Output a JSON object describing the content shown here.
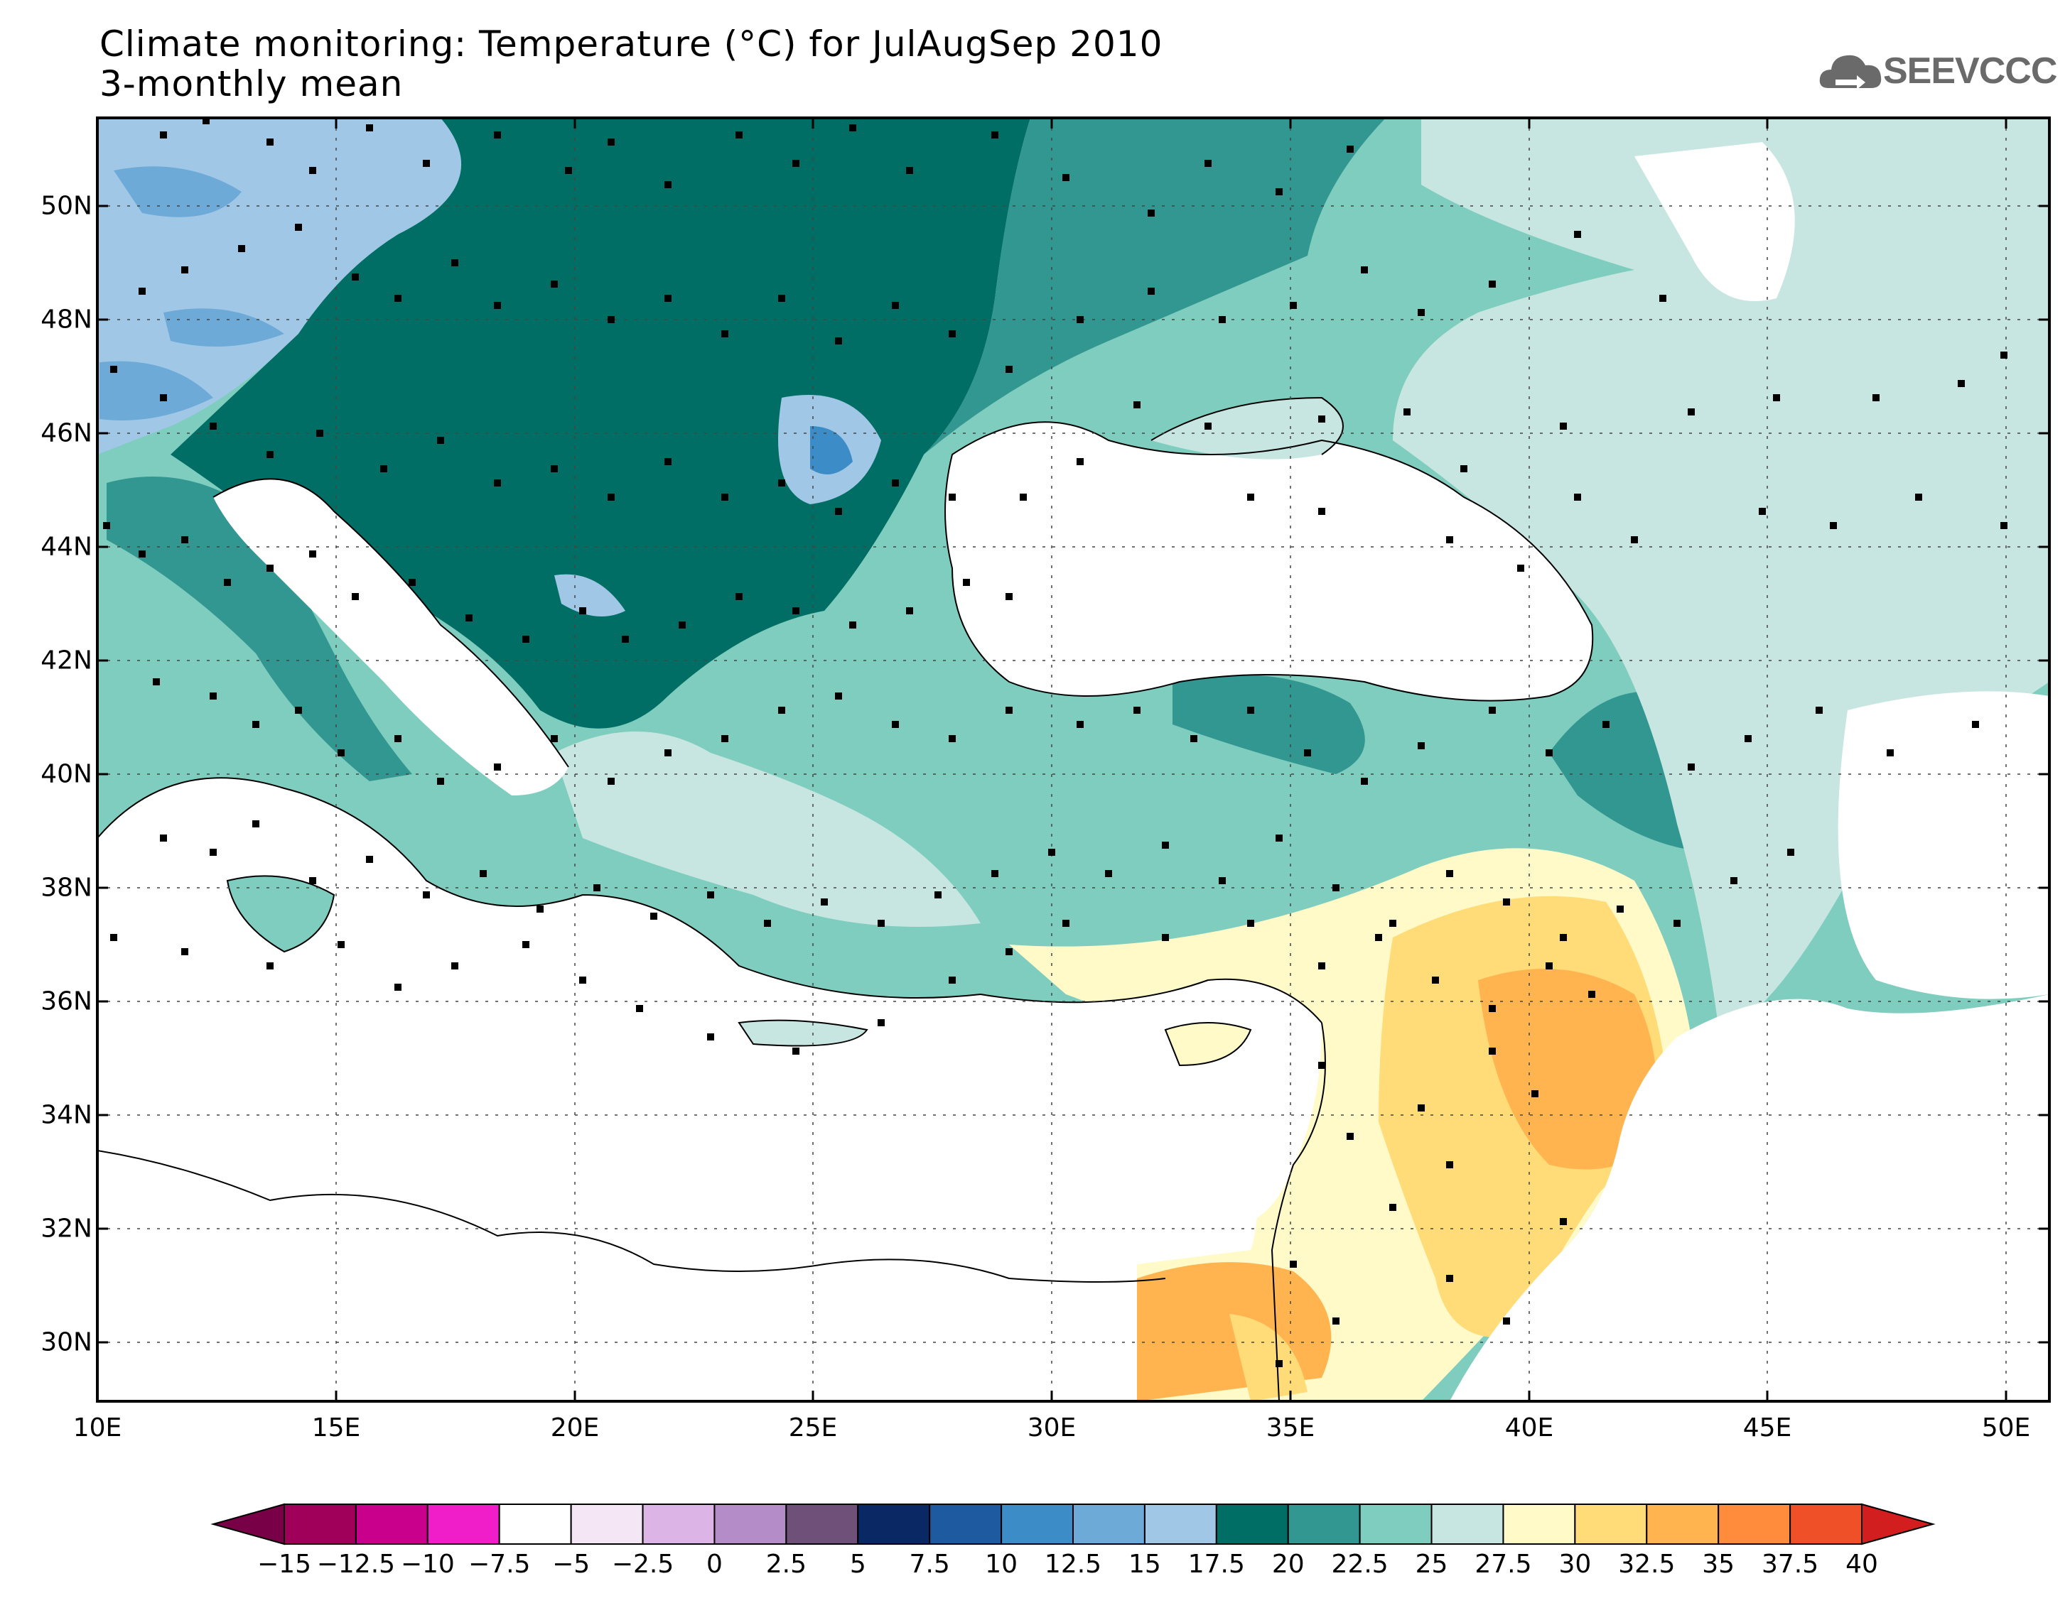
{
  "header": {
    "title": "Climate monitoring: Temperature (°C) for JulAugSep 2010",
    "subtitle": "3-monthly mean",
    "logo_text": "SEEVCCC"
  },
  "axes": {
    "lon_labels": [
      "10E",
      "15E",
      "20E",
      "25E",
      "30E",
      "35E",
      "40E",
      "45E",
      "50E"
    ],
    "lat_labels": [
      "50N",
      "48N",
      "46N",
      "44N",
      "42N",
      "40N",
      "38N",
      "36N",
      "34N",
      "32N",
      "30N"
    ]
  },
  "colorbar": {
    "labels": [
      "−15",
      "−12.5",
      "−10",
      "−7.5",
      "−5",
      "−2.5",
      "0",
      "2.5",
      "5",
      "7.5",
      "10",
      "12.5",
      "15",
      "17.5",
      "20",
      "22.5",
      "25",
      "27.5",
      "30",
      "32.5",
      "35",
      "37.5",
      "40"
    ],
    "colors": [
      "#a0005a",
      "#c8008c",
      "#f01ec8",
      "#ffffff",
      "#f4e6f4",
      "#dcb4e6",
      "#b48cc8",
      "#6e5078",
      "#0a2864",
      "#1e5aa0",
      "#3c8cc8",
      "#6eaad7",
      "#a0c8e6",
      "#006e64",
      "#329691",
      "#7ecdbe",
      "#c8e6e1",
      "#fffac8",
      "#ffdc78",
      "#ffb450",
      "#ff8c3c",
      "#f05028"
    ],
    "under_color": "#780046",
    "over_color": "#d21e1e"
  },
  "legend_palette": {
    "t17": "#a0c8e6",
    "t15": "#6eaad7",
    "t12": "#3c8cc8",
    "t20": "#006e64",
    "t22": "#329691",
    "t25": "#7ecdbe",
    "t27": "#c8e6e1",
    "t30": "#fffac8",
    "t32": "#ffdc78",
    "t35": "#ffb450"
  }
}
